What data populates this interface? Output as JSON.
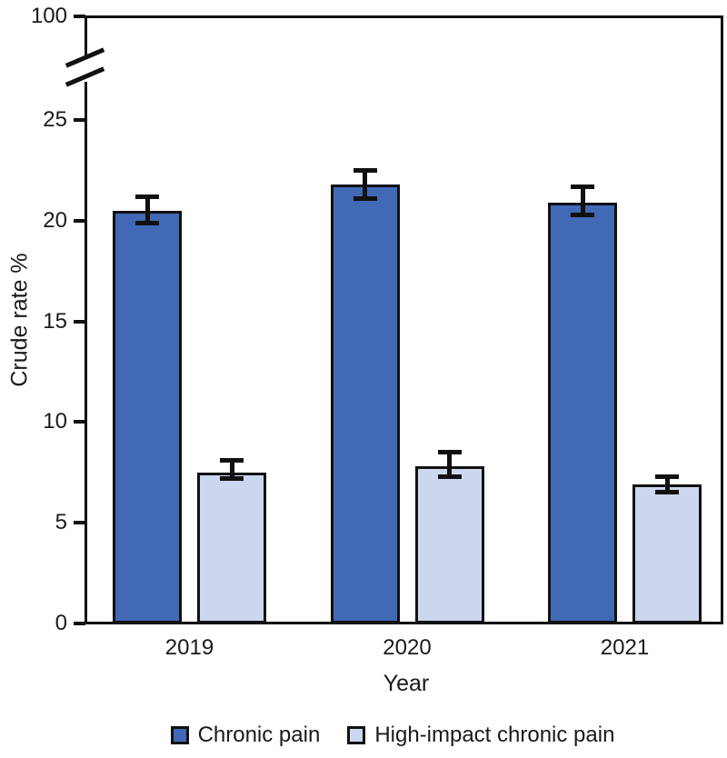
{
  "chart_data": {
    "type": "bar",
    "title": "",
    "xlabel": "Year",
    "ylabel": "Crude rate %",
    "categories": [
      "2019",
      "2020",
      "2021"
    ],
    "series": [
      {
        "name": "Chronic pain",
        "color": "#4169b5",
        "values": [
          20.5,
          21.8,
          20.9
        ],
        "ci_low": [
          19.9,
          21.1,
          20.3
        ],
        "ci_high": [
          21.2,
          22.5,
          21.7
        ]
      },
      {
        "name": "High-impact chronic pain",
        "color": "#ccd6ee",
        "values": [
          7.5,
          7.8,
          6.9
        ],
        "ci_low": [
          7.2,
          7.3,
          6.5
        ],
        "ci_high": [
          8.1,
          8.5,
          7.3
        ]
      }
    ],
    "y_axis": {
      "lower_ticks": [
        0,
        5,
        10,
        15,
        20,
        25
      ],
      "upper_tick": 100,
      "axis_break": true,
      "ylim_lower": [
        0,
        25
      ]
    },
    "x_axis": {
      "tick_labels": [
        "2019",
        "2020",
        "2021"
      ]
    },
    "legend_position": "bottom",
    "grid": false,
    "bar_edge_color": "#111111",
    "error_bar_color": "#111111"
  }
}
